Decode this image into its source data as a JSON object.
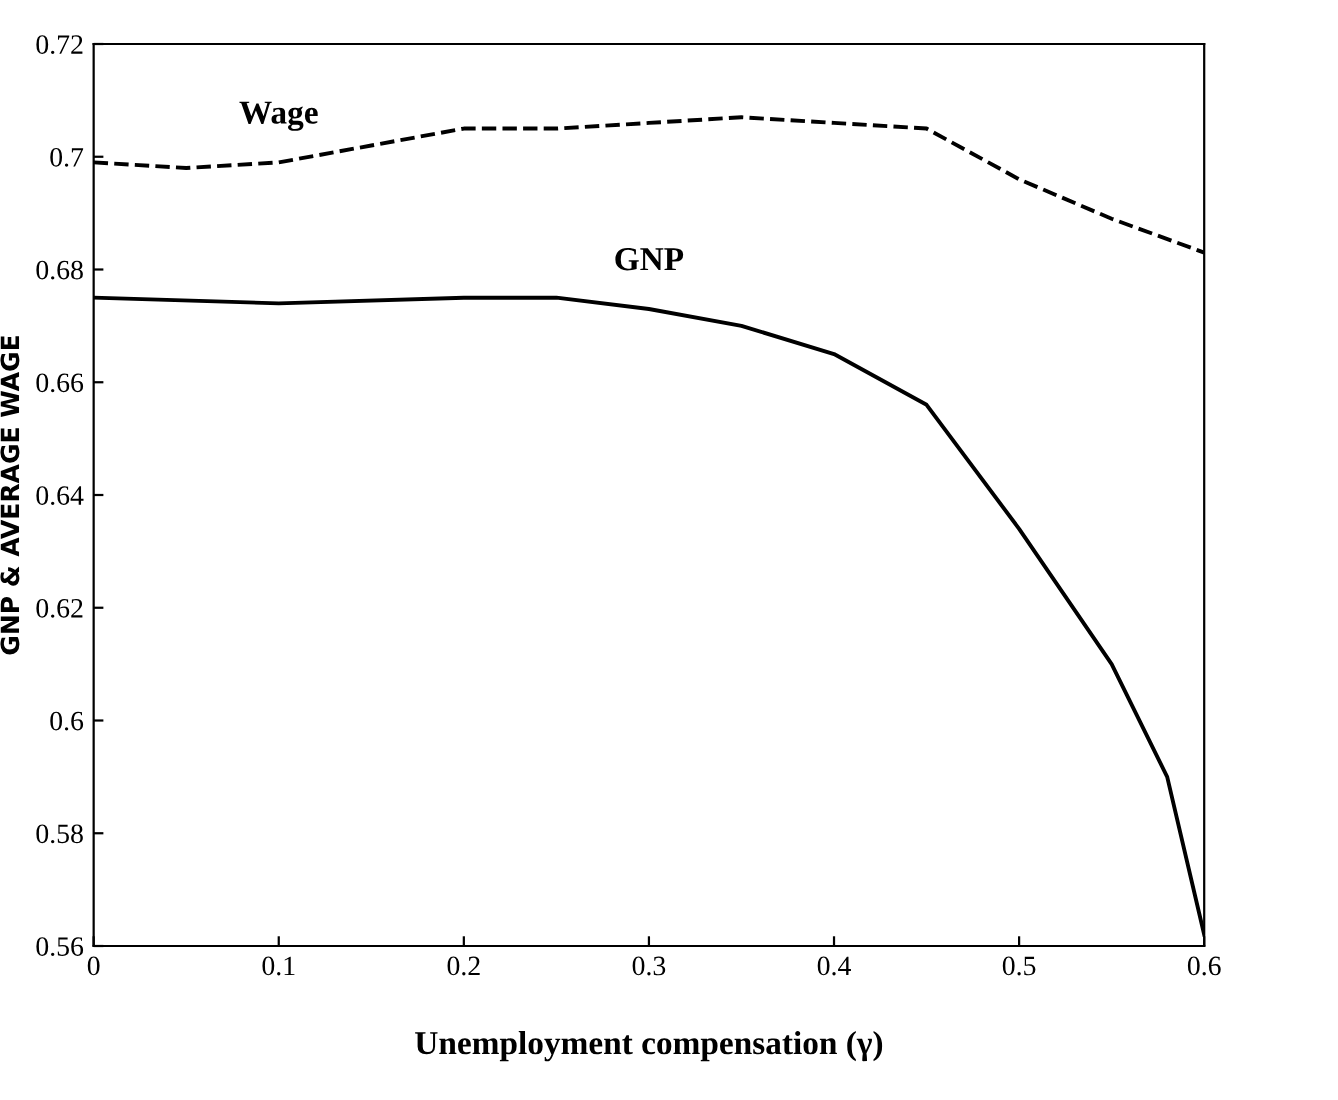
{
  "chart_data": {
    "type": "line",
    "xlabel": "Unemployment compensation (γ)",
    "ylabel": "GNP & AVERAGE WAGE",
    "xlim": [
      0,
      0.6
    ],
    "ylim": [
      0.56,
      0.72
    ],
    "xticks": [
      0,
      0.1,
      0.2,
      0.3,
      0.4,
      0.5,
      0.6
    ],
    "yticks": [
      0.56,
      0.58,
      0.6,
      0.62,
      0.64,
      0.66,
      0.68,
      0.7,
      0.72
    ],
    "grid": false,
    "legend": false,
    "series": [
      {
        "x": [
          0,
          0.05,
          0.1,
          0.15,
          0.2,
          0.25,
          0.3,
          0.35,
          0.4,
          0.45,
          0.5,
          0.55,
          0.6
        ],
        "values": [
          0.699,
          0.698,
          0.699,
          0.702,
          0.705,
          0.705,
          0.706,
          0.707,
          0.706,
          0.705,
          0.696,
          0.689,
          0.683
        ],
        "name": "Wage",
        "color": "#000000",
        "line_style": "dashed"
      },
      {
        "x": [
          0,
          0.1,
          0.2,
          0.25,
          0.3,
          0.35,
          0.4,
          0.45,
          0.5,
          0.55,
          0.58,
          0.6
        ],
        "values": [
          0.675,
          0.674,
          0.675,
          0.675,
          0.673,
          0.67,
          0.665,
          0.656,
          0.634,
          0.61,
          0.59,
          0.562
        ],
        "name": "GNP",
        "color": "#000000",
        "line_style": "solid"
      }
    ]
  }
}
